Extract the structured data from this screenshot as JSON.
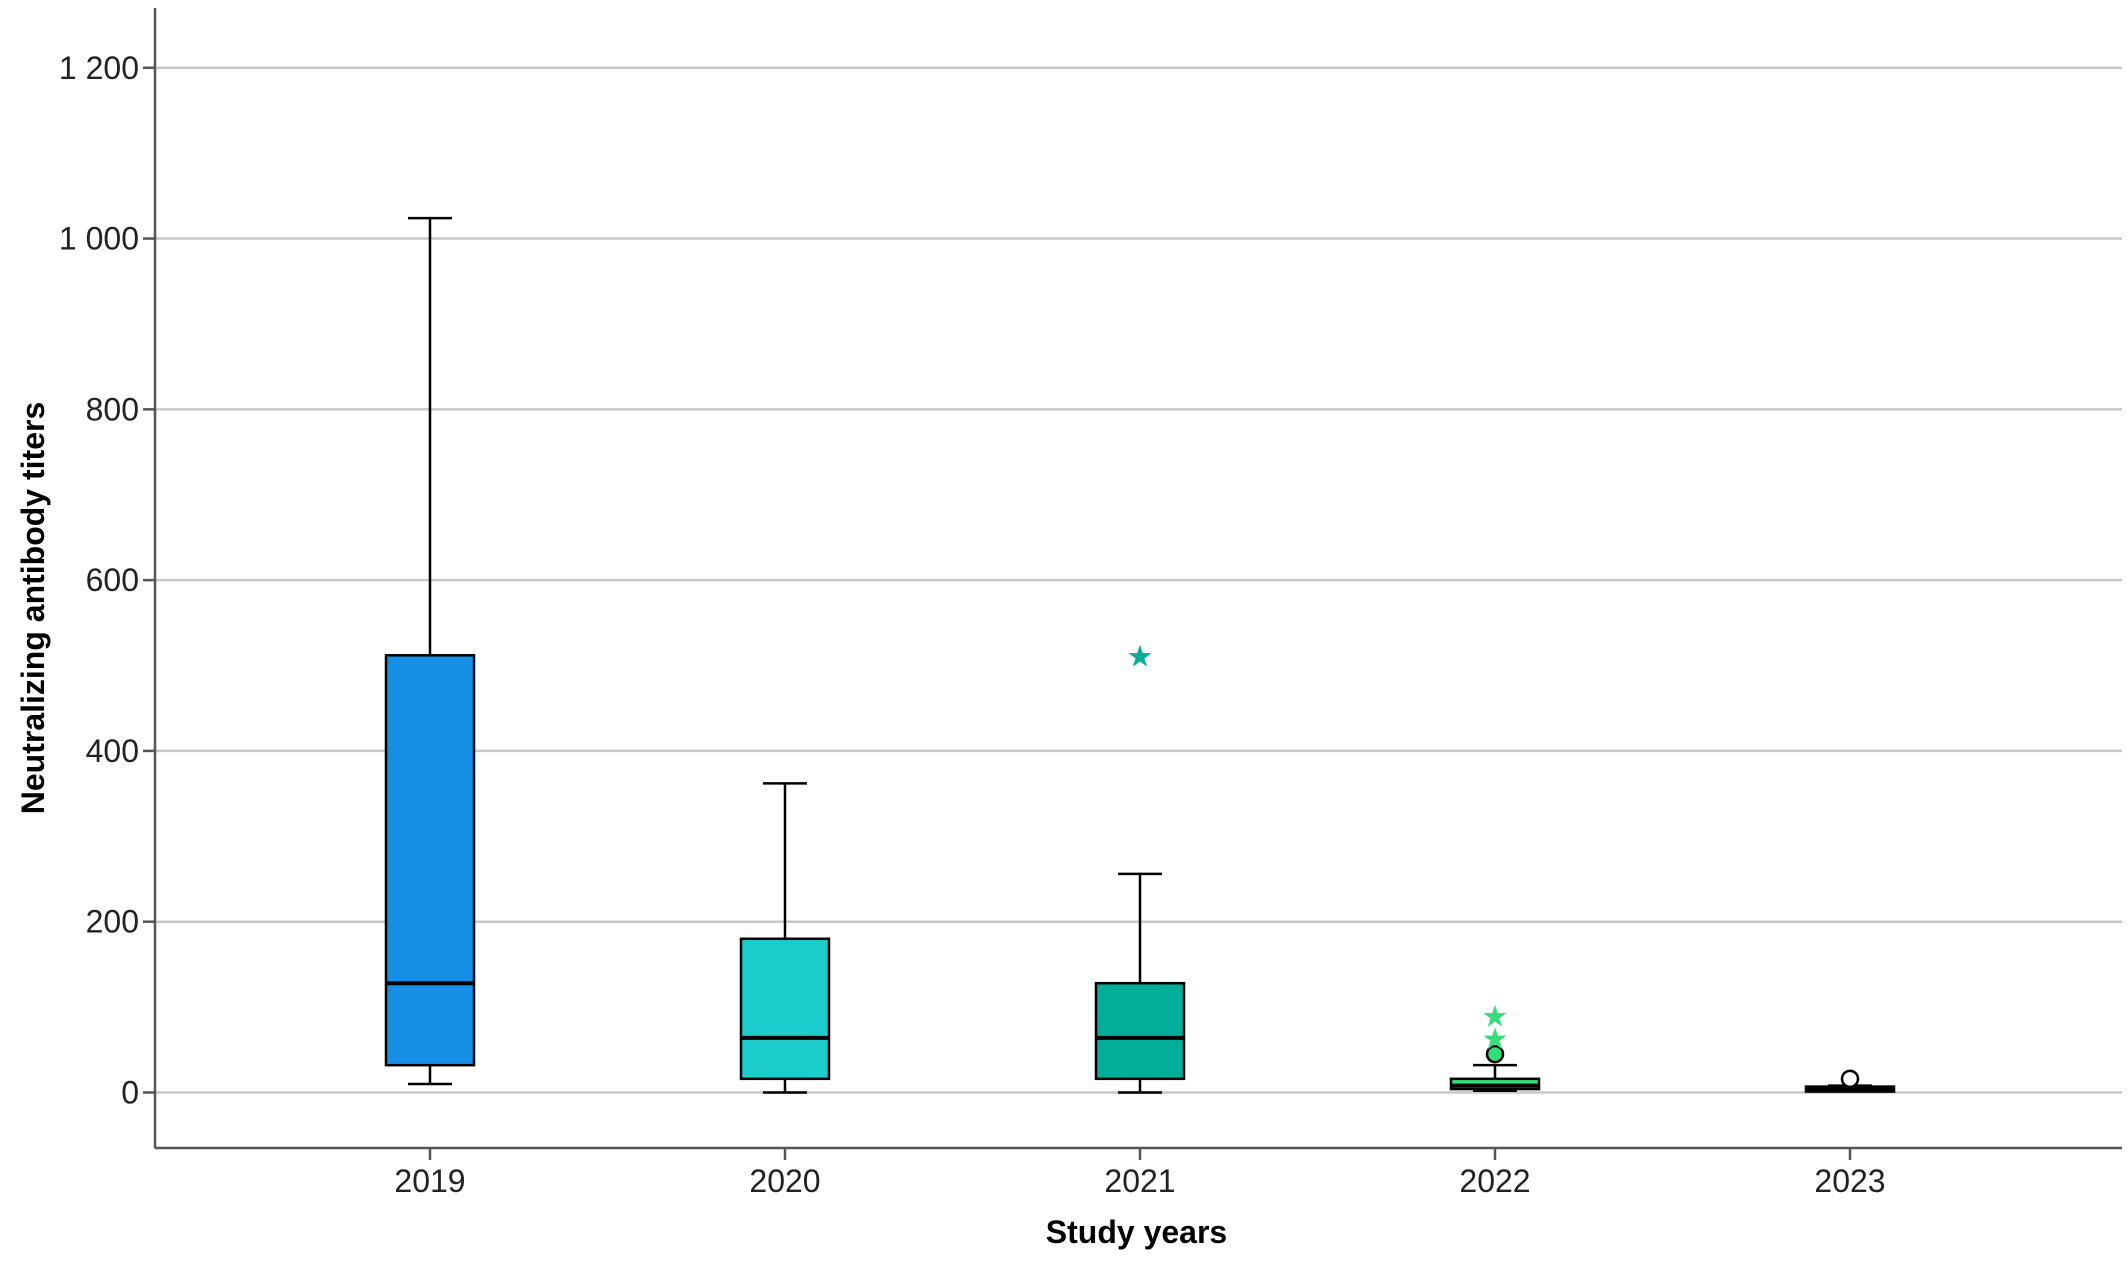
{
  "chart_data": {
    "type": "box",
    "xlabel": "Study years",
    "ylabel": "Neutralizing antibody titers",
    "ylim": [
      -65,
      1270
    ],
    "yticks": [
      0,
      200,
      400,
      600,
      800,
      1000,
      1200
    ],
    "ytick_labels": [
      "0",
      "200",
      "400",
      "600",
      "800",
      "1 000",
      "1 200"
    ],
    "grid": true,
    "categories": [
      "2019",
      "2020",
      "2021",
      "2022",
      "2023"
    ],
    "boxes": [
      {
        "category": "2019",
        "min": 10,
        "q1": 32,
        "median": 128,
        "q3": 512,
        "max": 1024,
        "color": "#1690E6",
        "outliers": [],
        "extremes": []
      },
      {
        "category": "2020",
        "min": 0,
        "q1": 16,
        "median": 64,
        "q3": 180,
        "max": 362,
        "color": "#1CCCCC",
        "outliers": [],
        "extremes": []
      },
      {
        "category": "2021",
        "min": 0,
        "q1": 16,
        "median": 64,
        "q3": 128,
        "max": 256,
        "color": "#00AE99",
        "outliers": [],
        "extremes": [
          512
        ]
      },
      {
        "category": "2022",
        "min": 2,
        "q1": 4,
        "median": 8,
        "q3": 16,
        "max": 32,
        "color": "#33DD77",
        "outliers": [
          45
        ],
        "extremes": [
          64,
          90
        ]
      },
      {
        "category": "2023",
        "min": 2,
        "q1": 2,
        "median": 4,
        "q3": 6,
        "max": 8,
        "color": "#000000",
        "outliers": [
          16
        ],
        "extremes": []
      }
    ]
  }
}
